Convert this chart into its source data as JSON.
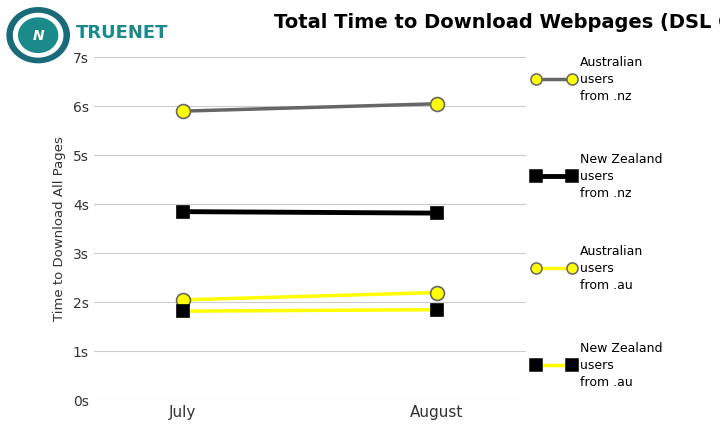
{
  "title": "Total Time to Download Webpages (DSL Only)",
  "ylabel": "Time to Download All Pages",
  "x_labels": [
    "July",
    "August"
  ],
  "x_values": [
    0,
    1
  ],
  "series": [
    {
      "label": "Australian\nusers\nfrom .nz",
      "y_values": [
        5.9,
        6.05
      ],
      "line_color": "#666666",
      "marker_color": "#ffff00",
      "marker_style": "o",
      "line_width": 2.5,
      "marker_size": 10,
      "marker_edge_color": "#666666",
      "legend_line_color": "#666666"
    },
    {
      "label": "New Zealand\nusers\nfrom .nz",
      "y_values": [
        3.85,
        3.82
      ],
      "line_color": "#000000",
      "marker_color": "#000000",
      "marker_style": "s",
      "line_width": 3.5,
      "marker_size": 9,
      "marker_edge_color": "#000000",
      "legend_line_color": "#000000"
    },
    {
      "label": "Australian\nusers\nfrom .au",
      "y_values": [
        2.05,
        2.2
      ],
      "line_color": "#ffff00",
      "marker_color": "#ffff00",
      "marker_style": "o",
      "line_width": 2.5,
      "marker_size": 10,
      "marker_edge_color": "#666666",
      "legend_line_color": "#ffff00"
    },
    {
      "label": "New Zealand\nusers\nfrom .au",
      "y_values": [
        1.82,
        1.85
      ],
      "line_color": "#ffff00",
      "marker_color": "#000000",
      "marker_style": "s",
      "line_width": 2.5,
      "marker_size": 9,
      "marker_edge_color": "#000000",
      "legend_line_color": "#ffff00"
    }
  ],
  "ylim": [
    0,
    7
  ],
  "yticks": [
    0,
    1,
    2,
    3,
    4,
    5,
    6,
    7
  ],
  "ytick_labels": [
    "0s",
    "1s",
    "2s",
    "3s",
    "4s",
    "5s",
    "6s",
    "7s"
  ],
  "background_color": "#ffffff",
  "grid_color": "#cccccc",
  "title_fontsize": 14,
  "axis_fontsize": 9.5,
  "tick_fontsize": 10,
  "legend_fontsize": 9,
  "truenet_color": "#1a8a8a"
}
